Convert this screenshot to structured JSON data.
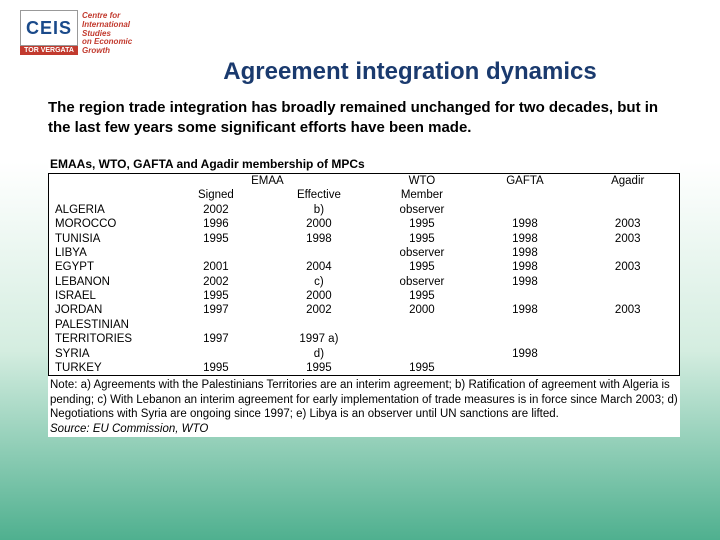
{
  "logo": {
    "main": "CEIS",
    "sub": "TOR VERGATA",
    "tag": "Centre for\nInternational\nStudies\non Economic\nGrowth"
  },
  "title": "Agreement integration dynamics",
  "subtitle": "The region trade integration has broadly remained unchanged for two decades, but in the last few years some significant efforts have been made.",
  "table": {
    "caption": "EMAAs, WTO, GAFTA and Agadir membership of MPCs",
    "head_emaa": "EMAA",
    "head_signed": "Signed",
    "head_effective": "Effective",
    "head_wto": "WTO",
    "head_member": "Member",
    "head_gafta": "GAFTA",
    "head_agadir": "Agadir",
    "rows": [
      {
        "c": "ALGERIA",
        "signed": "2002",
        "eff": "b)",
        "wto": "observer",
        "gafta": "",
        "agadir": ""
      },
      {
        "c": "MOROCCO",
        "signed": "1996",
        "eff": "2000",
        "wto": "1995",
        "gafta": "1998",
        "agadir": "2003"
      },
      {
        "c": "TUNISIA",
        "signed": "1995",
        "eff": "1998",
        "wto": "1995",
        "gafta": "1998",
        "agadir": "2003"
      },
      {
        "c": "LIBYA",
        "signed": "",
        "eff": "",
        "wto": "observer",
        "gafta": "1998",
        "agadir": ""
      },
      {
        "c": "EGYPT",
        "signed": "2001",
        "eff": "2004",
        "wto": "1995",
        "gafta": "1998",
        "agadir": "2003"
      },
      {
        "c": "LEBANON",
        "signed": "2002",
        "eff": "c)",
        "wto": "observer",
        "gafta": "1998",
        "agadir": ""
      },
      {
        "c": "ISRAEL",
        "signed": "1995",
        "eff": "2000",
        "wto": "1995",
        "gafta": "",
        "agadir": ""
      },
      {
        "c": "JORDAN",
        "signed": "1997",
        "eff": "2002",
        "wto": "2000",
        "gafta": "1998",
        "agadir": "2003"
      },
      {
        "c": "PALESTINIAN",
        "signed": "",
        "eff": "",
        "wto": "",
        "gafta": "",
        "agadir": ""
      },
      {
        "c": "TERRITORIES",
        "signed": "1997",
        "eff": "1997 a)",
        "wto": "",
        "gafta": "",
        "agadir": ""
      },
      {
        "c": "SYRIA",
        "signed": "",
        "eff": "d)",
        "wto": "",
        "gafta": "1998",
        "agadir": ""
      },
      {
        "c": "TURKEY",
        "signed": "1995",
        "eff": "1995",
        "wto": "1995",
        "gafta": "",
        "agadir": ""
      }
    ],
    "note": "Note: a) Agreements with the Palestinians Territories are an interim agreement; b) Ratification of agreement with Algeria is pending; c) With Lebanon an interim agreement for early implementation of trade measures is in force since March 2003; d) Negotiations with Syria are ongoing since 1997; e) Libya is an observer until UN sanctions are lifted.",
    "source": "Source: EU Commission, WTO"
  },
  "colors": {
    "title": "#1a3a6e",
    "logo_red": "#c23a2e",
    "border": "#000000"
  }
}
